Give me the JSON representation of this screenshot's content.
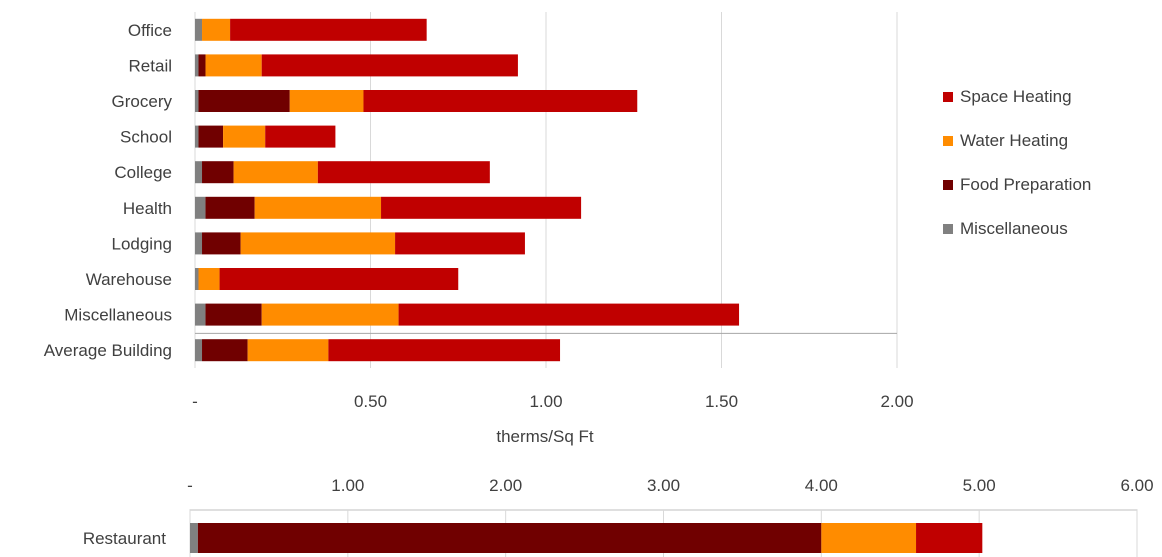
{
  "colors": {
    "Space Heating": "#c00000",
    "Water Heating": "#ff8c00",
    "Food Preparation": "#700000",
    "Miscellaneous": "#808080",
    "grid": "#d9d9d9",
    "text": "#404040"
  },
  "chart_data": [
    {
      "type": "bar",
      "orientation": "horizontal",
      "stacked": true,
      "categories": [
        "Office",
        "Retail",
        "Grocery",
        "School",
        "College",
        "Health",
        "Lodging",
        "Warehouse",
        "Miscellaneous",
        "Average Building"
      ],
      "series": [
        {
          "name": "Miscellaneous",
          "values": [
            0.02,
            0.01,
            0.01,
            0.01,
            0.02,
            0.03,
            0.02,
            0.01,
            0.03,
            0.02
          ]
        },
        {
          "name": "Food Preparation",
          "values": [
            0.0,
            0.02,
            0.26,
            0.07,
            0.09,
            0.14,
            0.11,
            0.0,
            0.16,
            0.13
          ]
        },
        {
          "name": "Water Heating",
          "values": [
            0.08,
            0.16,
            0.21,
            0.12,
            0.24,
            0.36,
            0.44,
            0.06,
            0.39,
            0.23
          ]
        },
        {
          "name": "Space Heating",
          "values": [
            0.56,
            0.73,
            0.78,
            0.2,
            0.49,
            0.57,
            0.37,
            0.68,
            0.97,
            0.66
          ]
        }
      ],
      "xlim": [
        0,
        2.0
      ],
      "xticks": [
        "-",
        "0.50",
        "1.00",
        "1.50",
        "2.00"
      ],
      "xlabel": "therms/Sq Ft",
      "grid": "vertical",
      "legend": [
        "Space Heating",
        "Water Heating",
        "Food Preparation",
        "Miscellaneous"
      ],
      "legend_position": "right"
    },
    {
      "type": "bar",
      "orientation": "horizontal",
      "stacked": true,
      "categories": [
        "Restaurant"
      ],
      "series": [
        {
          "name": "Miscellaneous",
          "values": [
            0.05
          ]
        },
        {
          "name": "Food Preparation",
          "values": [
            3.95
          ]
        },
        {
          "name": "Water Heating",
          "values": [
            0.6
          ]
        },
        {
          "name": "Space Heating",
          "values": [
            0.42
          ]
        }
      ],
      "xlim": [
        0,
        6.0
      ],
      "xticks": [
        "-",
        "1.00",
        "2.00",
        "3.00",
        "4.00",
        "5.00",
        "6.00"
      ],
      "xaxis_position": "top",
      "grid": "vertical"
    }
  ]
}
